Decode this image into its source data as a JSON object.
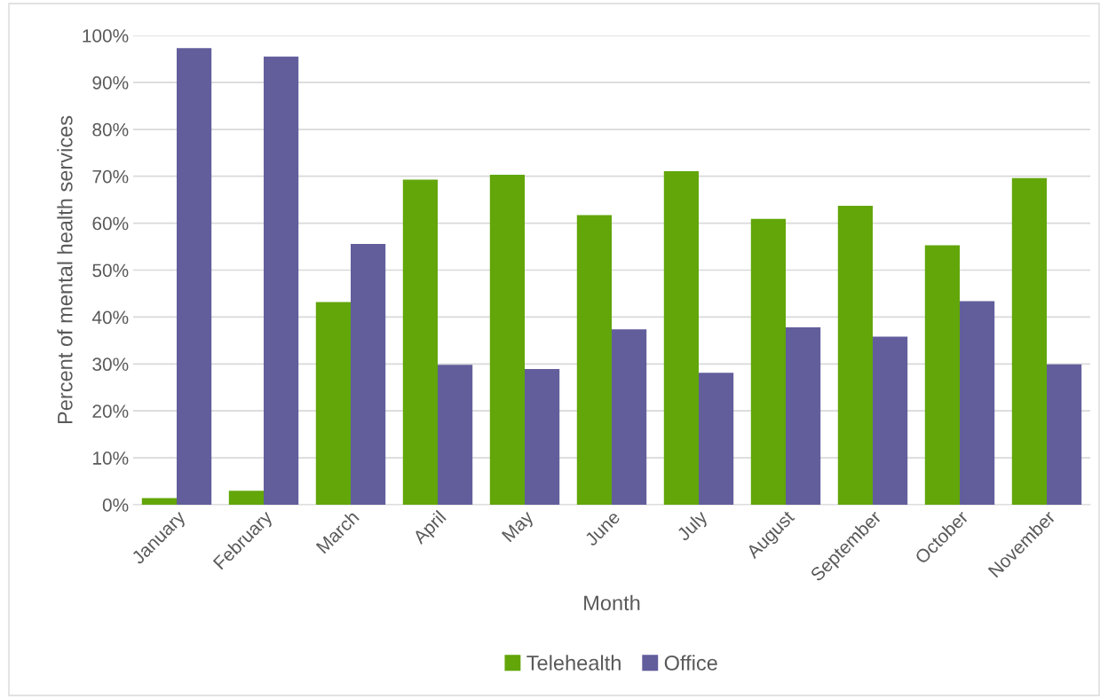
{
  "chart_data": {
    "type": "bar",
    "xlabel": "Month",
    "ylabel": "Percent of mental health services",
    "categories": [
      "January",
      "February",
      "March",
      "April",
      "May",
      "June",
      "July",
      "August",
      "September",
      "October",
      "November"
    ],
    "series": [
      {
        "name": "Telehealth",
        "color": "#62a60a",
        "values": [
          1.4,
          3.0,
          43.2,
          69.3,
          70.3,
          61.7,
          71.1,
          60.9,
          63.7,
          55.3,
          69.6
        ]
      },
      {
        "name": "Office",
        "color": "#625e9c",
        "values": [
          97.3,
          95.5,
          55.6,
          29.8,
          28.9,
          37.4,
          28.1,
          37.8,
          35.8,
          43.4,
          29.9
        ]
      }
    ],
    "ylim": [
      0,
      100
    ],
    "yticks": [
      {
        "value": 0,
        "label": "0%"
      },
      {
        "value": 10,
        "label": "10%"
      },
      {
        "value": 20,
        "label": "20%"
      },
      {
        "value": 30,
        "label": "30%"
      },
      {
        "value": 40,
        "label": "40%"
      },
      {
        "value": 50,
        "label": "50%"
      },
      {
        "value": 60,
        "label": "60%"
      },
      {
        "value": 70,
        "label": "70%"
      },
      {
        "value": 80,
        "label": "80%"
      },
      {
        "value": 90,
        "label": "90%"
      },
      {
        "value": 100,
        "label": "100%"
      }
    ],
    "grid": "y",
    "legend": "bottom"
  }
}
